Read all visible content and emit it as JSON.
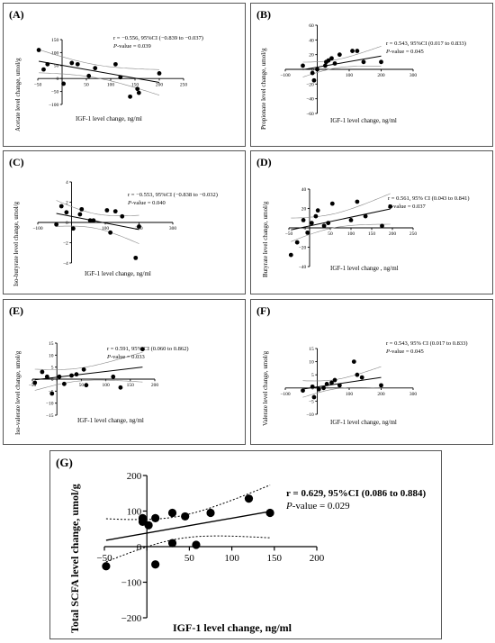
{
  "chart_data": [
    {
      "id": "A",
      "type": "scatter",
      "panel_label": "(A)",
      "xlabel": "IGF-1 level change, ng/ml",
      "ylabel": "Acetate level change, umol/g",
      "stat_r": "r = −0.556, 95%CI (−0.839 to −0.037)",
      "stat_p_label": "P",
      "stat_p_value": "-value = 0.039",
      "xlim": [
        -50,
        250
      ],
      "ylim": [
        -100,
        150
      ],
      "xticks": [
        -50,
        0,
        50,
        100,
        150,
        200,
        250
      ],
      "yticks": [
        -100,
        -50,
        0,
        50,
        100,
        150
      ],
      "x": [
        -48,
        -38,
        -30,
        3,
        20,
        32,
        55,
        68,
        110,
        120,
        140,
        155,
        158,
        200
      ],
      "y": [
        110,
        35,
        55,
        -20,
        60,
        55,
        10,
        40,
        55,
        5,
        -70,
        -40,
        -55,
        20
      ],
      "fit": {
        "slope": -0.33,
        "intercept": 51
      }
    },
    {
      "id": "B",
      "type": "scatter",
      "panel_label": "(B)",
      "xlabel": "IGF-1 level change, ng/ml",
      "ylabel": "Propionate level change, umol/g",
      "stat_r": "r = 0.543, 95%CI (0.017 to 0.833)",
      "stat_p_label": "P",
      "stat_p_value": "-value = 0.045",
      "xlim": [
        -100,
        300
      ],
      "ylim": [
        -60,
        60
      ],
      "xticks": [
        -100,
        0,
        100,
        200,
        300
      ],
      "yticks": [
        -60,
        -40,
        -20,
        0,
        20,
        40,
        60
      ],
      "x": [
        -45,
        -15,
        -10,
        0,
        25,
        28,
        35,
        45,
        55,
        70,
        110,
        125,
        145,
        200
      ],
      "y": [
        5,
        -5,
        -15,
        0,
        5,
        10,
        12,
        15,
        8,
        20,
        25,
        25,
        10,
        10
      ],
      "fit": {
        "slope": 0.075,
        "intercept": 3
      }
    },
    {
      "id": "C",
      "type": "scatter",
      "panel_label": "(C)",
      "xlabel": "IGF-1 level change, ng/ml",
      "ylabel": "Iso-butyrate level change, umol/g",
      "stat_r": "r = −0.553, 95%CI (−0.838 to −0.032)",
      "stat_p_label": "P",
      "stat_p_value": "-value = 0.040",
      "xlim": [
        -100,
        300
      ],
      "ylim": [
        -4,
        4
      ],
      "xticks": [
        -100,
        0,
        100,
        200,
        300
      ],
      "yticks": [
        -4,
        -2,
        0,
        2,
        4
      ],
      "x": [
        -45,
        -30,
        -15,
        5,
        25,
        30,
        55,
        65,
        105,
        115,
        130,
        150,
        190,
        200
      ],
      "y": [
        -0.2,
        1.6,
        1.0,
        -0.6,
        0.8,
        1.3,
        0.2,
        0.2,
        1.2,
        -1.0,
        1.1,
        0.6,
        -3.5,
        -0.4
      ],
      "fit": {
        "slope": -0.0065,
        "intercept": 0.6
      }
    },
    {
      "id": "D",
      "type": "scatter",
      "panel_label": "(D)",
      "xlabel": "IGF-1 level change , ng/ml",
      "ylabel": "Butyrate level change, umol/g",
      "stat_r": "r = 0.561, 95% CI (0.043 to 0.841)",
      "stat_p_label": "P",
      "stat_p_value": "-value = 0.037",
      "xlim": [
        -50,
        250
      ],
      "ylim": [
        -40,
        40
      ],
      "xticks": [
        -50,
        0,
        50,
        100,
        150,
        200,
        250
      ],
      "yticks": [
        -40,
        -20,
        0,
        20,
        40
      ],
      "x": [
        -45,
        -30,
        -15,
        -5,
        5,
        15,
        20,
        35,
        45,
        55,
        100,
        115,
        135,
        175,
        195
      ],
      "y": [
        -28,
        -15,
        8,
        -5,
        5,
        12,
        18,
        2,
        5,
        25,
        8,
        27,
        12,
        2,
        22
      ],
      "fit": {
        "slope": 0.09,
        "intercept": 2
      }
    },
    {
      "id": "E",
      "type": "scatter",
      "panel_label": "(E)",
      "xlabel": "IGF-1 level change, ng/ml",
      "ylabel": "Iso-valerate level change, umol/g",
      "stat_r": "r = 0.591, 95% CI (0.060 to 0.862)",
      "stat_p_label": "P",
      "stat_p_value": "-value = 0.033",
      "xlim": [
        -50,
        200
      ],
      "ylim": [
        -15,
        15
      ],
      "xticks": [
        -50,
        0,
        50,
        100,
        150,
        200
      ],
      "yticks": [
        -15,
        -10,
        -5,
        0,
        5,
        10,
        15
      ],
      "x": [
        -45,
        -30,
        -20,
        -10,
        5,
        15,
        30,
        40,
        55,
        60,
        115,
        130,
        175
      ],
      "y": [
        -1.5,
        3.0,
        1.0,
        -6.0,
        1.0,
        -2.0,
        1.5,
        2.0,
        4.0,
        -2.5,
        1.0,
        -3.5,
        12.5
      ],
      "fit": {
        "slope": 0.024,
        "intercept": 0.8
      }
    },
    {
      "id": "F",
      "type": "scatter",
      "panel_label": "(F)",
      "xlabel": "IGF-1 level change, ng/ml",
      "ylabel": "Valerate level change, umol/g",
      "stat_r": "r = 0.543, 95% CI (0.017 to 0.833)",
      "stat_p_label": "P",
      "stat_p_value": "-value = 0.045",
      "xlim": [
        -100,
        300
      ],
      "ylim": [
        -10,
        15
      ],
      "xticks": [
        -100,
        0,
        100,
        200,
        300
      ],
      "yticks": [
        -10,
        -5,
        0,
        5,
        10,
        15
      ],
      "x": [
        -45,
        -15,
        -10,
        5,
        20,
        30,
        45,
        55,
        70,
        115,
        125,
        140,
        200
      ],
      "y": [
        -1.0,
        0.5,
        -3.5,
        -0.5,
        0.0,
        1.5,
        2.0,
        3.0,
        1.0,
        10.0,
        5.0,
        4.0,
        1.0
      ],
      "fit": {
        "slope": 0.018,
        "intercept": 0.4
      }
    },
    {
      "id": "G",
      "type": "scatter",
      "panel_label": "(G)",
      "xlabel": "IGF-1 level change, ng/ml",
      "ylabel": "Total SCFA level change, umol/g",
      "stat_r": "r = 0.629, 95%CI (0.086 to 0.884)",
      "stat_p_label": "P",
      "stat_p_value": "-value = 0.029",
      "xlim": [
        -50,
        200
      ],
      "ylim": [
        -200,
        200
      ],
      "xticks": [
        -50,
        0,
        50,
        100,
        150,
        200
      ],
      "yticks": [
        -200,
        -100,
        0,
        100,
        200
      ],
      "x": [
        -48,
        -5,
        -5,
        2,
        10,
        10,
        30,
        30,
        45,
        58,
        75,
        120,
        145
      ],
      "y": [
        -55,
        70,
        80,
        60,
        80,
        -50,
        95,
        10,
        85,
        5,
        95,
        135,
        95
      ],
      "fit": {
        "slope": 0.42,
        "intercept": 38
      }
    }
  ]
}
